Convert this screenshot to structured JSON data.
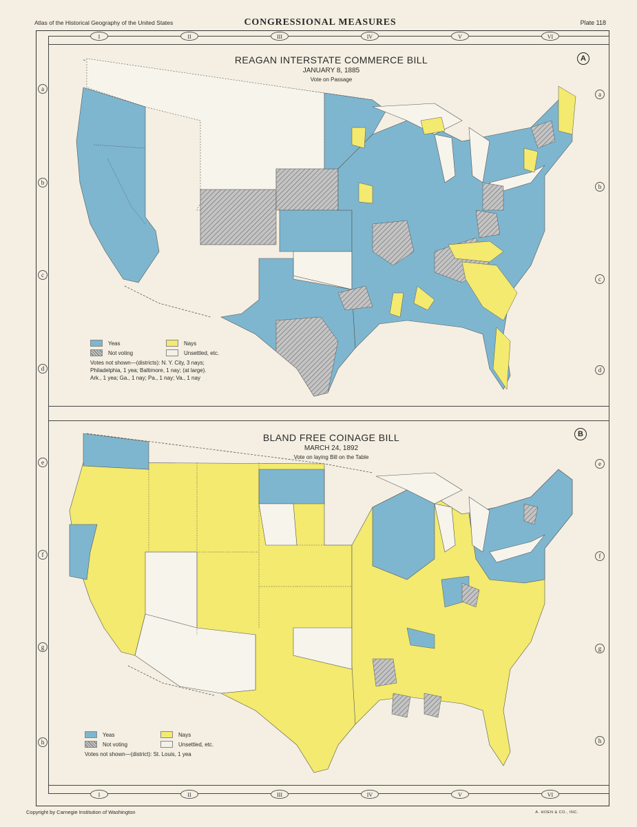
{
  "header": {
    "left": "Atlas of the Historical Geography of the United States",
    "center": "CONGRESSIONAL MEASURES",
    "right": "Plate 118"
  },
  "grid": {
    "columns": [
      "I",
      "II",
      "III",
      "IV",
      "V",
      "VI"
    ],
    "rows": [
      "a",
      "b",
      "c",
      "d",
      "e",
      "f",
      "g",
      "h"
    ]
  },
  "colors": {
    "yeas": "#7eb6cf",
    "nays": "#f3ea6f",
    "not_voting": "#b4b4b4",
    "unsettled": "#f4f1e8",
    "paper": "#f4efe2"
  },
  "map_a": {
    "badge": "A",
    "title": "REAGAN INTERSTATE COMMERCE BILL",
    "date": "JANUARY 8, 1885",
    "subtitle": "Vote on Passage",
    "legend": {
      "yeas": "Yeas",
      "nays": "Nays",
      "not_voting": "Not voting",
      "unsettled": "Unsettled, etc.",
      "notes": [
        "Votes not shown—(districts): N. Y. City, 3 nays;",
        "Philadelphia, 1 yea; Baltimore, 1 nay; (at large).",
        "Ark., 1 yea; Ga., 1 nay; Pa., 1 nay; Va., 1 nay"
      ]
    }
  },
  "map_b": {
    "badge": "B",
    "title": "BLAND FREE COINAGE BILL",
    "date": "MARCH 24, 1892",
    "subtitle": "Vote on laying Bill on the Table",
    "legend": {
      "yeas": "Yeas",
      "nays": "Nays",
      "not_voting": "Not voting",
      "unsettled": "Unsettled, etc.",
      "notes": [
        "Votes not shown—(district): St. Louis, 1 yea"
      ]
    }
  },
  "footer": {
    "left": "Copyright by Carnegie Institution of Washington",
    "right": "A. HOEN & CO., INC."
  }
}
